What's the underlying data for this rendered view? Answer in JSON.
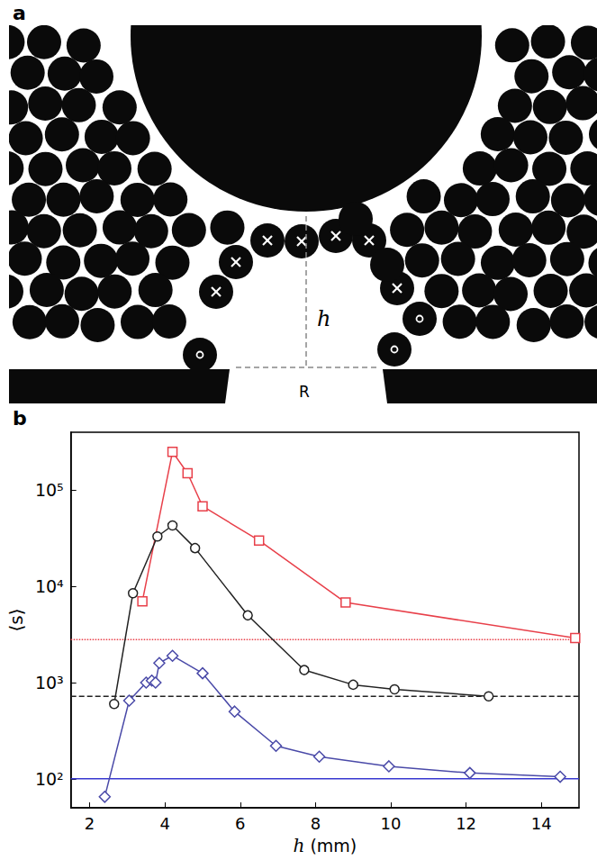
{
  "panel_a": {
    "letter": "a",
    "height_label": "h",
    "orifice_label": "R"
  },
  "chart_data": {
    "panel_letter": "b",
    "type": "line",
    "x_label": "h (mm)",
    "y_label": "⟨s⟩",
    "log": "y",
    "grid": false,
    "xlim": [
      1.5,
      15
    ],
    "xticks": [
      2,
      4,
      6,
      8,
      10,
      12,
      14
    ],
    "ylim": [
      50,
      400000
    ],
    "yticks": [
      {
        "value": 100,
        "label": "10²"
      },
      {
        "value": 1000,
        "label": "10³"
      },
      {
        "value": 10000,
        "label": "10⁴"
      },
      {
        "value": 100000,
        "label": "10⁵"
      }
    ],
    "series": [
      {
        "color": "#e8404a",
        "marker": "square",
        "x": [
          3.4,
          4.2,
          4.6,
          5.0,
          6.5,
          8.8,
          14.9
        ],
        "values": [
          7000,
          250000,
          150000,
          68000,
          30000,
          6800,
          2900
        ]
      },
      {
        "color": "#222222",
        "marker": "circle",
        "x": [
          2.65,
          3.15,
          3.8,
          4.2,
          4.8,
          6.2,
          7.7,
          9.0,
          10.1,
          12.6
        ],
        "values": [
          600,
          8500,
          33000,
          43000,
          25000,
          5000,
          1350,
          950,
          850,
          720
        ]
      },
      {
        "color": "#4a4aa8",
        "marker": "diamond",
        "x": [
          2.4,
          3.05,
          3.5,
          3.65,
          3.75,
          3.85,
          4.2,
          5.0,
          5.85,
          6.95,
          8.1,
          9.95,
          12.1,
          14.5
        ],
        "values": [
          65,
          650,
          1000,
          1050,
          1000,
          1600,
          1900,
          1250,
          500,
          220,
          170,
          135,
          115,
          105
        ]
      }
    ],
    "reference_lines": [
      {
        "value": 2800,
        "color": "#e8404a",
        "line_style": "dotted"
      },
      {
        "value": 720,
        "color": "#222222",
        "line_style": "dashed"
      },
      {
        "value": 100,
        "color": "#3838d0",
        "line_style": "solid"
      }
    ]
  }
}
